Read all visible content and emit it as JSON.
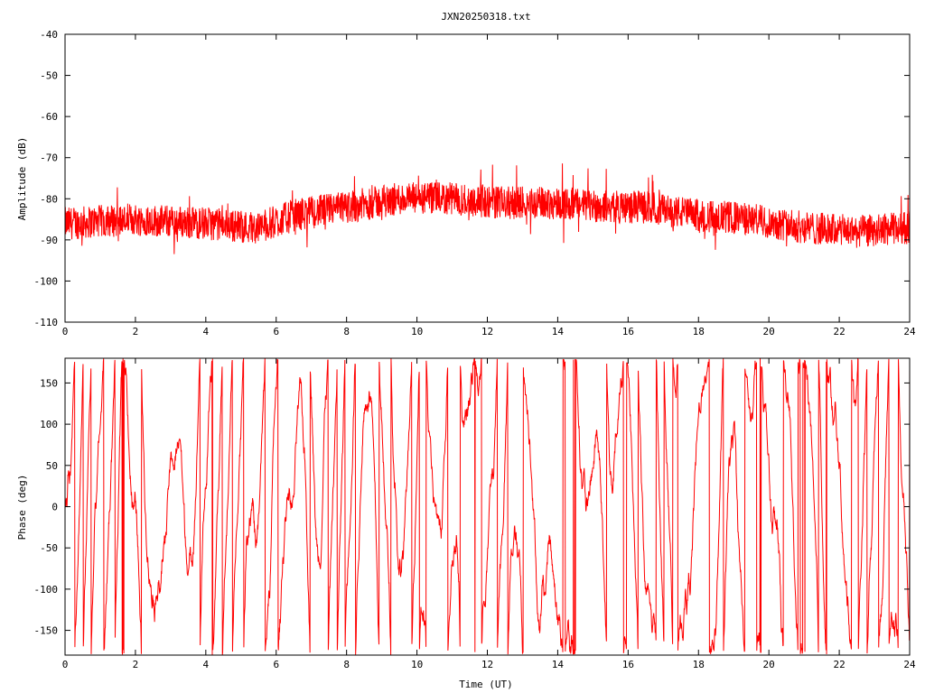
{
  "title": "JXN20250318.txt",
  "colors": {
    "series": "#ff0000",
    "axes": "#000000",
    "background": "#ffffff"
  },
  "chart_data": [
    {
      "type": "line",
      "series": [
        {
          "x_range": [
            0,
            24
          ],
          "amplitude_trend": [
            [
              0,
              -86
            ],
            [
              2,
              -85
            ],
            [
              4,
              -86
            ],
            [
              5.5,
              -87
            ],
            [
              6.5,
              -84
            ],
            [
              8,
              -82
            ],
            [
              9.5,
              -80
            ],
            [
              11,
              -80
            ],
            [
              12.5,
              -81
            ],
            [
              14,
              -81
            ],
            [
              15.5,
              -82
            ],
            [
              16.5,
              -82
            ],
            [
              18,
              -84
            ],
            [
              19.5,
              -85
            ],
            [
              21,
              -87
            ],
            [
              22.5,
              -88
            ],
            [
              24,
              -87
            ]
          ],
          "noise_halfwidth": 4
        }
      ],
      "xlabel": "",
      "ylabel": "Amplitude (dB)",
      "xlim": [
        0,
        24
      ],
      "ylim": [
        -110,
        -40
      ],
      "xticks": [
        "0",
        "2",
        "4",
        "6",
        "8",
        "10",
        "12",
        "14",
        "16",
        "18",
        "20",
        "22",
        "24"
      ],
      "yticks": [
        "-40",
        "-50",
        "-60",
        "-70",
        "-80",
        "-90",
        "-100",
        "-110"
      ],
      "grid": false
    },
    {
      "type": "line",
      "series": [
        {
          "x_range": [
            0,
            24
          ],
          "phase_range": [
            -180,
            180
          ],
          "behavior": "rapid wrapping phase"
        }
      ],
      "xlabel": "Time (UT)",
      "ylabel": "Phase (deg)",
      "xlim": [
        0,
        24
      ],
      "ylim": [
        -180,
        180
      ],
      "xticks": [
        "0",
        "2",
        "4",
        "6",
        "8",
        "10",
        "12",
        "14",
        "16",
        "18",
        "20",
        "22",
        "24"
      ],
      "yticks": [
        "150",
        "100",
        "50",
        "0",
        "-50",
        "-100",
        "-150"
      ],
      "grid": false
    }
  ]
}
